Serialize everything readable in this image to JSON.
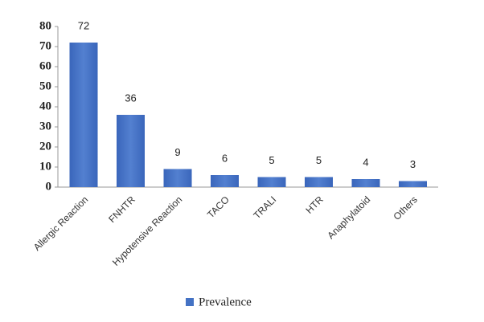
{
  "chart_data": {
    "type": "bar",
    "categories": [
      "Allergic Reaction",
      "FNHTR",
      "Hypotensive Reaction",
      "TACO",
      "TRALI",
      "HTR",
      "Anaphylatoid",
      "Others"
    ],
    "series": [
      {
        "name": "Prevalence",
        "color": "#4472c4",
        "values": [
          72,
          36,
          9,
          6,
          5,
          5,
          4,
          3
        ]
      }
    ],
    "ylim": [
      0,
      80
    ],
    "yticks": [
      0,
      10,
      20,
      30,
      40,
      50,
      60,
      70,
      80
    ],
    "grid": false,
    "legend": "bottom"
  }
}
